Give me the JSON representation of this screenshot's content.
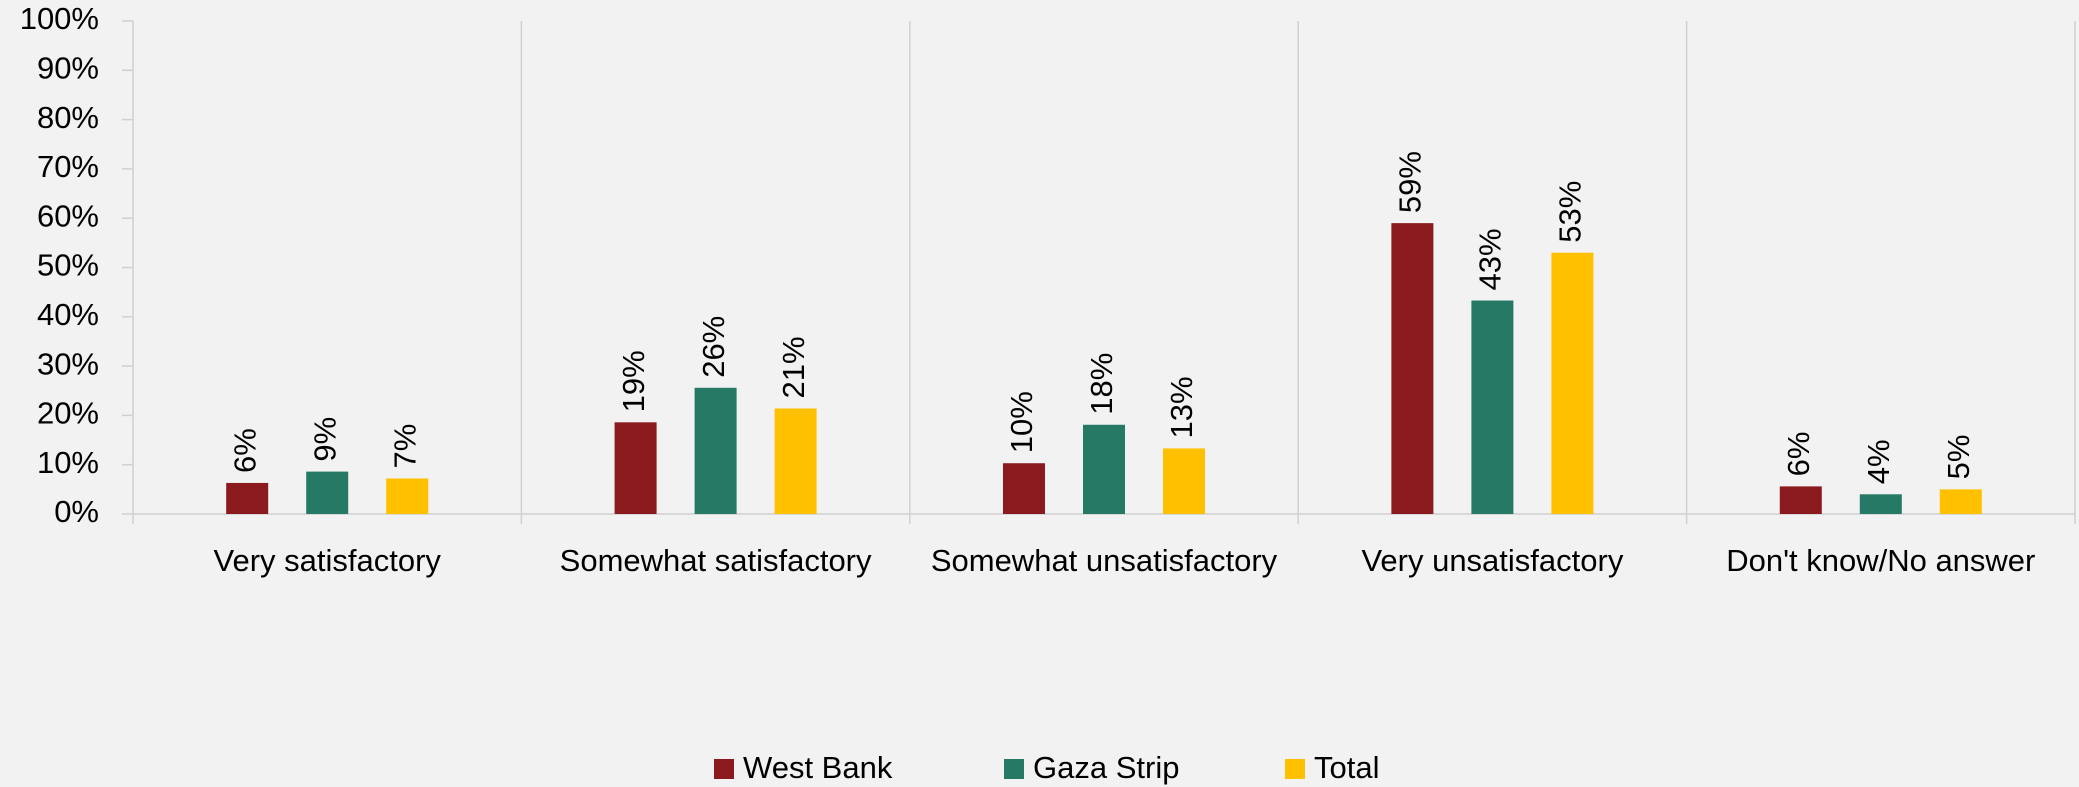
{
  "chart_data": {
    "type": "bar",
    "categories": [
      "Very satisfactory",
      "Somewhat satisfactory",
      "Somewhat unsatisfactory",
      "Very unsatisfactory",
      "Don't know/No answer"
    ],
    "series": [
      {
        "name": "West Bank",
        "color": "#8b1a1f",
        "values": [
          6.3,
          18.6,
          10.3,
          59,
          5.6
        ],
        "value_labels": [
          "6%",
          "19%",
          "10%",
          "59%",
          "6%"
        ]
      },
      {
        "name": "Gaza Strip",
        "color": "#267a65",
        "values": [
          8.6,
          25.6,
          18.1,
          43.3,
          4.0
        ],
        "value_labels": [
          "9%",
          "26%",
          "18%",
          "43%",
          "4%"
        ]
      },
      {
        "name": "Total",
        "color": "#ffc000",
        "values": [
          7.2,
          21.4,
          13.3,
          53,
          5.0
        ],
        "value_labels": [
          "7%",
          "21%",
          "13%",
          "53%",
          "5%"
        ]
      }
    ],
    "ylim": [
      0,
      100
    ],
    "yticks": [
      {
        "value": 0,
        "label": "0%"
      },
      {
        "value": 10,
        "label": "10%"
      },
      {
        "value": 20,
        "label": "20%"
      },
      {
        "value": 30,
        "label": "30%"
      },
      {
        "value": 40,
        "label": "40%"
      },
      {
        "value": 50,
        "label": "50%"
      },
      {
        "value": 60,
        "label": "60%"
      },
      {
        "value": 70,
        "label": "70%"
      },
      {
        "value": 80,
        "label": "80%"
      },
      {
        "value": 90,
        "label": "90%"
      },
      {
        "value": 100,
        "label": "100%"
      }
    ],
    "legend": "bottom"
  }
}
